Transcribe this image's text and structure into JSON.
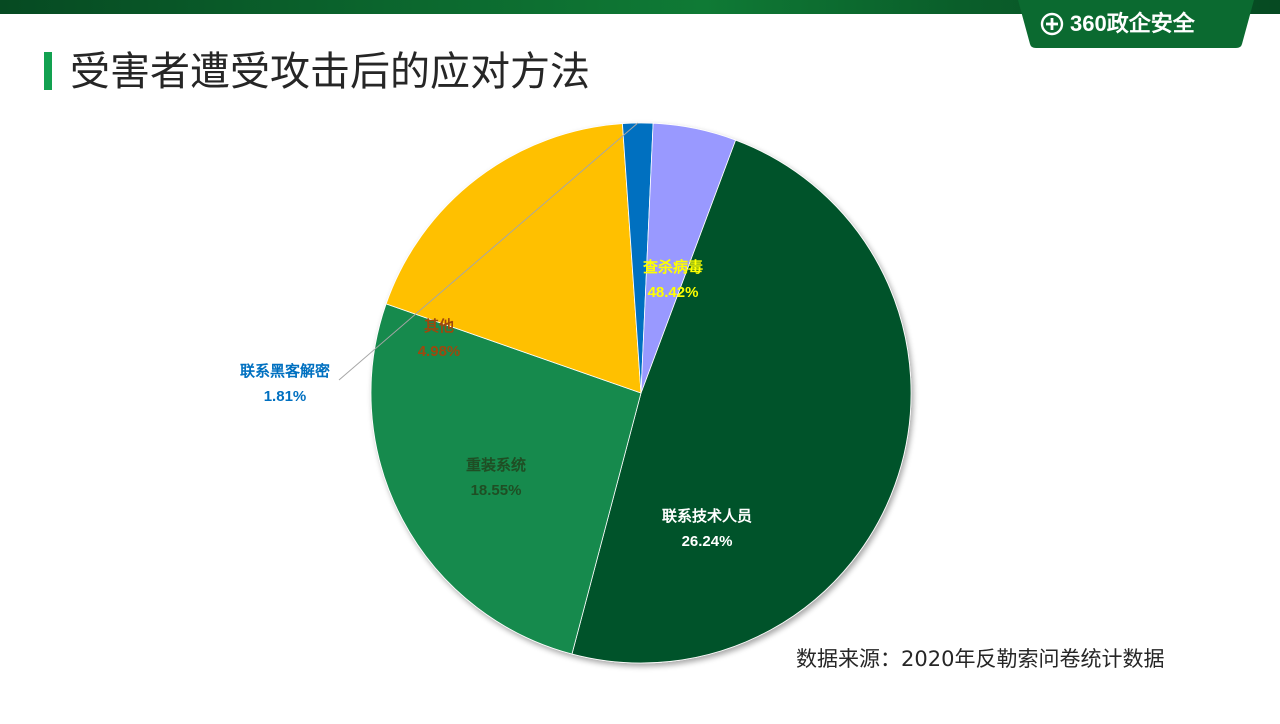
{
  "header": {
    "brand": "360政企安全"
  },
  "page": {
    "title": "受害者遭受攻击后的应对方法"
  },
  "footer": {
    "source": "数据来源：2020年反勒索问卷统计数据"
  },
  "chart_data": {
    "type": "pie",
    "title": "",
    "slices": [
      {
        "label": "查杀病毒",
        "value": 48.42,
        "display": "48.42%",
        "color": "#05532a",
        "label_color": "#ffff00"
      },
      {
        "label": "联系技术人员",
        "value": 26.24,
        "display": "26.24%",
        "color": "#138a4e",
        "label_color": "#ffffff"
      },
      {
        "label": "重装系统",
        "value": 18.55,
        "display": "18.55%",
        "color": "#ffc000",
        "label_color": "#1f4e24"
      },
      {
        "label": "联系黑客解密",
        "value": 1.81,
        "display": "1.81%",
        "color": "#0070c0",
        "label_color": "#0070c0"
      },
      {
        "label": "其他",
        "value": 4.98,
        "display": "4.98%",
        "color": "#9999ff",
        "label_color": "#9e480e"
      }
    ],
    "start_angle_deg": 69.5,
    "direction": "clockwise"
  }
}
